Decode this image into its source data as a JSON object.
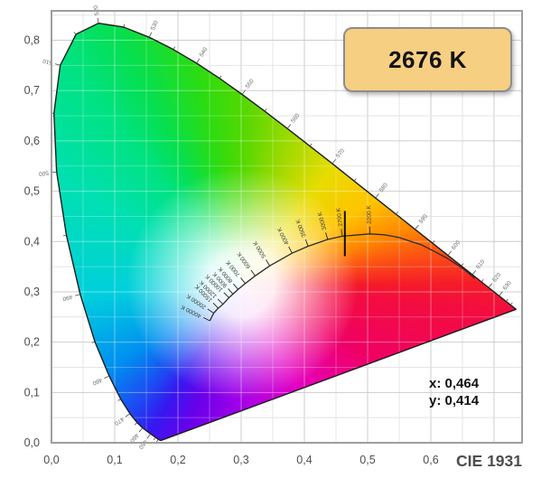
{
  "badge": {
    "cct_label": "2676 K"
  },
  "readout": {
    "x_line": "x: 0,464",
    "y_line": "y: 0,414"
  },
  "footer_label": "CIE 1931",
  "chart_data": {
    "type": "scatter",
    "subtype": "cie-1931-chromaticity-diagram",
    "title": "CIE 1931",
    "xlabel": "",
    "ylabel": "",
    "xlim": [
      0,
      0.744
    ],
    "ylim": [
      0,
      0.859
    ],
    "grid": true,
    "grid_step": 0.05,
    "x_ticks": [
      {
        "v": 0.0,
        "label": "0,0"
      },
      {
        "v": 0.1,
        "label": "0,1"
      },
      {
        "v": 0.2,
        "label": "0,2"
      },
      {
        "v": 0.3,
        "label": "0,3"
      },
      {
        "v": 0.4,
        "label": "0,4"
      },
      {
        "v": 0.5,
        "label": "0,5"
      },
      {
        "v": 0.6,
        "label": "0,6"
      }
    ],
    "y_ticks": [
      {
        "v": 0.0,
        "label": "0,0"
      },
      {
        "v": 0.1,
        "label": "0,1"
      },
      {
        "v": 0.2,
        "label": "0,2"
      },
      {
        "v": 0.3,
        "label": "0,3"
      },
      {
        "v": 0.4,
        "label": "0,4"
      },
      {
        "v": 0.5,
        "label": "0,5"
      },
      {
        "v": 0.6,
        "label": "0,6"
      },
      {
        "v": 0.7,
        "label": "0,7"
      },
      {
        "v": 0.8,
        "label": "0,8"
      }
    ],
    "selected_point": {
      "x": 0.464,
      "y": 0.414,
      "cct_label": "2676 K",
      "x_display": "x: 0,464",
      "y_display": "y: 0,414"
    },
    "wavelength_labels_nm": [
      450,
      460,
      470,
      480,
      490,
      500,
      510,
      520,
      530,
      540,
      550,
      560,
      570,
      580,
      590,
      600,
      610,
      620,
      630
    ],
    "spectral_locus": [
      {
        "nm": 380,
        "x": 0.1741,
        "y": 0.005
      },
      {
        "nm": 390,
        "x": 0.1738,
        "y": 0.0049
      },
      {
        "nm": 400,
        "x": 0.1733,
        "y": 0.0048
      },
      {
        "nm": 410,
        "x": 0.1726,
        "y": 0.0048
      },
      {
        "nm": 420,
        "x": 0.1714,
        "y": 0.0051
      },
      {
        "nm": 430,
        "x": 0.1689,
        "y": 0.0069
      },
      {
        "nm": 440,
        "x": 0.1644,
        "y": 0.0109
      },
      {
        "nm": 450,
        "x": 0.1566,
        "y": 0.0177
      },
      {
        "nm": 460,
        "x": 0.144,
        "y": 0.0297
      },
      {
        "nm": 465,
        "x": 0.1355,
        "y": 0.0399
      },
      {
        "nm": 470,
        "x": 0.1241,
        "y": 0.0578
      },
      {
        "nm": 475,
        "x": 0.1096,
        "y": 0.0868
      },
      {
        "nm": 480,
        "x": 0.0913,
        "y": 0.1327
      },
      {
        "nm": 485,
        "x": 0.0687,
        "y": 0.2007
      },
      {
        "nm": 490,
        "x": 0.0454,
        "y": 0.295
      },
      {
        "nm": 495,
        "x": 0.0235,
        "y": 0.4127
      },
      {
        "nm": 500,
        "x": 0.0082,
        "y": 0.5384
      },
      {
        "nm": 505,
        "x": 0.0039,
        "y": 0.6548
      },
      {
        "nm": 510,
        "x": 0.0139,
        "y": 0.7502
      },
      {
        "nm": 515,
        "x": 0.0389,
        "y": 0.812
      },
      {
        "nm": 520,
        "x": 0.0743,
        "y": 0.8338
      },
      {
        "nm": 525,
        "x": 0.1142,
        "y": 0.8262
      },
      {
        "nm": 530,
        "x": 0.1547,
        "y": 0.8059
      },
      {
        "nm": 535,
        "x": 0.1929,
        "y": 0.7816
      },
      {
        "nm": 540,
        "x": 0.2296,
        "y": 0.7543
      },
      {
        "nm": 545,
        "x": 0.2658,
        "y": 0.7243
      },
      {
        "nm": 550,
        "x": 0.3016,
        "y": 0.6923
      },
      {
        "nm": 555,
        "x": 0.3373,
        "y": 0.6589
      },
      {
        "nm": 560,
        "x": 0.3731,
        "y": 0.6245
      },
      {
        "nm": 565,
        "x": 0.4087,
        "y": 0.5896
      },
      {
        "nm": 570,
        "x": 0.4441,
        "y": 0.5547
      },
      {
        "nm": 575,
        "x": 0.4788,
        "y": 0.5202
      },
      {
        "nm": 580,
        "x": 0.5125,
        "y": 0.4866
      },
      {
        "nm": 585,
        "x": 0.5448,
        "y": 0.4544
      },
      {
        "nm": 590,
        "x": 0.5752,
        "y": 0.4242
      },
      {
        "nm": 595,
        "x": 0.6029,
        "y": 0.3965
      },
      {
        "nm": 600,
        "x": 0.627,
        "y": 0.3725
      },
      {
        "nm": 605,
        "x": 0.6482,
        "y": 0.3514
      },
      {
        "nm": 610,
        "x": 0.6658,
        "y": 0.334
      },
      {
        "nm": 615,
        "x": 0.6801,
        "y": 0.3197
      },
      {
        "nm": 620,
        "x": 0.6915,
        "y": 0.3083
      },
      {
        "nm": 630,
        "x": 0.7079,
        "y": 0.292
      },
      {
        "nm": 640,
        "x": 0.719,
        "y": 0.2809
      },
      {
        "nm": 650,
        "x": 0.726,
        "y": 0.274
      },
      {
        "nm": 660,
        "x": 0.73,
        "y": 0.27
      },
      {
        "nm": 680,
        "x": 0.7334,
        "y": 0.2666
      },
      {
        "nm": 700,
        "x": 0.7347,
        "y": 0.2653
      }
    ],
    "planckian_locus": [
      {
        "k": 40000,
        "x": 0.2504,
        "y": 0.2425,
        "label": "40000 K"
      },
      {
        "k": 20000,
        "x": 0.2565,
        "y": 0.2577,
        "label": "20000 K"
      },
      {
        "k": 15000,
        "x": 0.2637,
        "y": 0.2674,
        "label": "15000 K"
      },
      {
        "k": 12000,
        "x": 0.2711,
        "y": 0.2754,
        "label": "12000 K"
      },
      {
        "k": 10000,
        "x": 0.2807,
        "y": 0.2884,
        "label": "10000 K"
      },
      {
        "k": 9000,
        "x": 0.287,
        "y": 0.2956,
        "label": "9000 K"
      },
      {
        "k": 8000,
        "x": 0.2952,
        "y": 0.3048,
        "label": "8000 K"
      },
      {
        "k": 7000,
        "x": 0.3064,
        "y": 0.3166,
        "label": "7000 K"
      },
      {
        "k": 6000,
        "x": 0.3221,
        "y": 0.3318,
        "label": "6000 K"
      },
      {
        "k": 5000,
        "x": 0.3452,
        "y": 0.3516,
        "label": "5000 K"
      },
      {
        "k": 4000,
        "x": 0.3805,
        "y": 0.3768,
        "label": "4000 K"
      },
      {
        "k": 3500,
        "x": 0.4059,
        "y": 0.3907,
        "label": "3500 K"
      },
      {
        "k": 3000,
        "x": 0.4369,
        "y": 0.4041,
        "label": "3000 K"
      },
      {
        "k": 2700,
        "x": 0.4599,
        "y": 0.4106,
        "label": "2700 K"
      },
      {
        "k": 2200,
        "x": 0.5035,
        "y": 0.4152,
        "label": "2200 K"
      },
      {
        "k": 2000,
        "x": 0.5267,
        "y": 0.4133,
        "label": null
      },
      {
        "k": 1800,
        "x": 0.5493,
        "y": 0.4082,
        "label": null
      },
      {
        "k": 1500,
        "x": 0.5857,
        "y": 0.3931,
        "label": null
      },
      {
        "k": 1200,
        "x": 0.6249,
        "y": 0.3676,
        "label": null
      },
      {
        "k": 1000,
        "x": 0.6528,
        "y": 0.3444,
        "label": null
      },
      {
        "k": 900,
        "x": 0.6693,
        "y": 0.3269,
        "label": null
      }
    ]
  }
}
